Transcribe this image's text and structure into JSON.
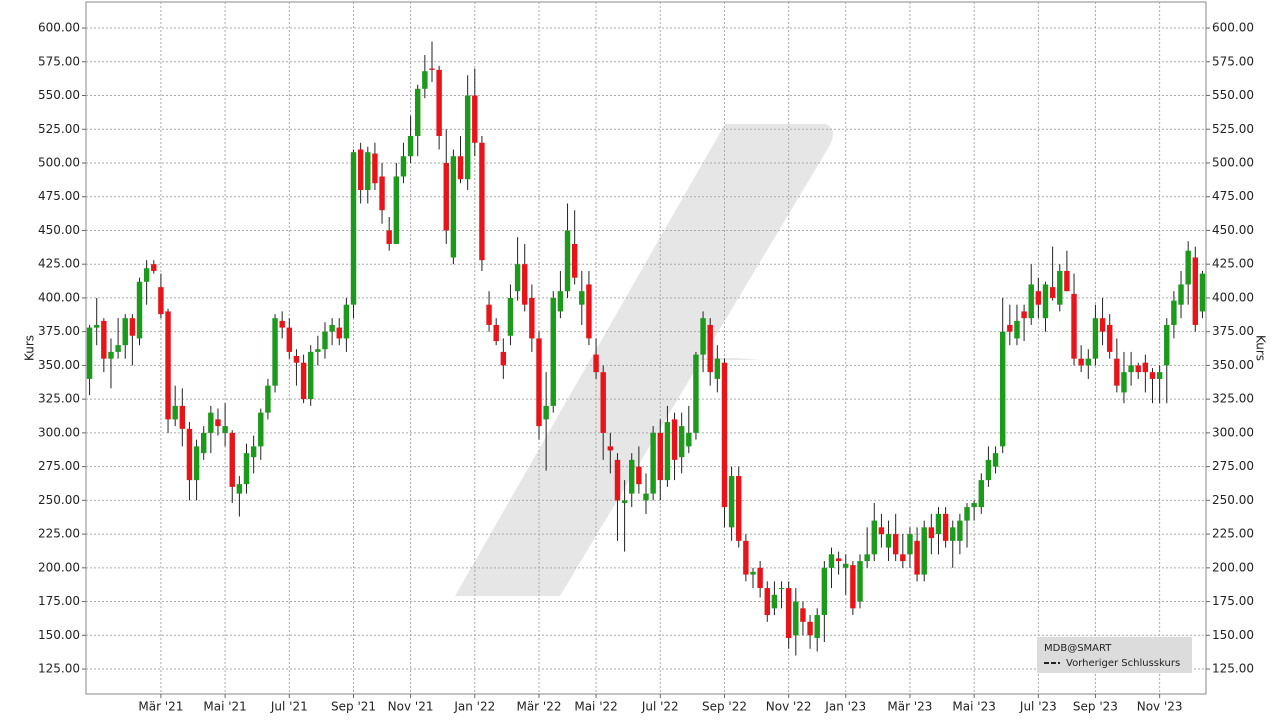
{
  "chart_data": {
    "type": "candlestick",
    "y_axis_label": "Kurs",
    "legend_title": "MDB@SMART",
    "legend_entry": "Vorheriger Schlusskurs",
    "up_color": "#1b9a1b",
    "down_color": "#e8141a",
    "grid": true,
    "ylim": [
      106.5,
      619.3
    ],
    "yticks": [
      {
        "value": 125,
        "label": "125.00"
      },
      {
        "value": 150,
        "label": "150.00"
      },
      {
        "value": 175,
        "label": "175.00"
      },
      {
        "value": 200,
        "label": "200.00"
      },
      {
        "value": 225,
        "label": "225.00"
      },
      {
        "value": 250,
        "label": "250.00"
      },
      {
        "value": 275,
        "label": "275.00"
      },
      {
        "value": 300,
        "label": "300.00"
      },
      {
        "value": 325,
        "label": "325.00"
      },
      {
        "value": 350,
        "label": "350.00"
      },
      {
        "value": 375,
        "label": "375.00"
      },
      {
        "value": 400,
        "label": "400.00"
      },
      {
        "value": 425,
        "label": "425.00"
      },
      {
        "value": 450,
        "label": "450.00"
      },
      {
        "value": 475,
        "label": "475.00"
      },
      {
        "value": 500,
        "label": "500.00"
      },
      {
        "value": 525,
        "label": "525.00"
      },
      {
        "value": 550,
        "label": "550.00"
      },
      {
        "value": 575,
        "label": "575.00"
      },
      {
        "value": 600,
        "label": "600.00"
      }
    ],
    "xlim": [
      -0.5,
      156.5
    ],
    "xticks": [
      {
        "value": 10,
        "label": "Mär '21"
      },
      {
        "value": 19,
        "label": "Mai '21"
      },
      {
        "value": 28,
        "label": "Jul '21"
      },
      {
        "value": 37,
        "label": "Sep '21"
      },
      {
        "value": 45,
        "label": "Nov '21"
      },
      {
        "value": 54,
        "label": "Jan '22"
      },
      {
        "value": 63,
        "label": "Mär '22"
      },
      {
        "value": 71,
        "label": "Mai '22"
      },
      {
        "value": 80,
        "label": "Jul '22"
      },
      {
        "value": 89,
        "label": "Sep '22"
      },
      {
        "value": 98,
        "label": "Nov '22"
      },
      {
        "value": 106,
        "label": "Jan '23"
      },
      {
        "value": 115,
        "label": "Mär '23"
      },
      {
        "value": 124,
        "label": "Mai '23"
      },
      {
        "value": 133,
        "label": "Jul '23"
      },
      {
        "value": 141,
        "label": "Sep '23"
      },
      {
        "value": 150,
        "label": "Nov '23"
      }
    ],
    "open": [
      340,
      378,
      383,
      355,
      360,
      365,
      385,
      370,
      412,
      425,
      408,
      390,
      310,
      320,
      303,
      265,
      285,
      300,
      310,
      300,
      300,
      255,
      262,
      282,
      290,
      315,
      335,
      383,
      378,
      357,
      352,
      325,
      360,
      362,
      375,
      378,
      370,
      395,
      510,
      480,
      507,
      490,
      450,
      440,
      490,
      505,
      520,
      555,
      570,
      569,
      500,
      430,
      505,
      488,
      550,
      515,
      395,
      380,
      360,
      372,
      405,
      425,
      400,
      370,
      310,
      320,
      390,
      405,
      440,
      395,
      410,
      358,
      345,
      290,
      280,
      248,
      255,
      275,
      250,
      255,
      300,
      265,
      310,
      282,
      290,
      300,
      358,
      380,
      340,
      352,
      230,
      268,
      220,
      195,
      200,
      185,
      170,
      185,
      185,
      150,
      170,
      160,
      148,
      165,
      200,
      207,
      200,
      202,
      175,
      205,
      210,
      230,
      215,
      225,
      210,
      210,
      220,
      195,
      230,
      225,
      240,
      220,
      220,
      235,
      245,
      245,
      265,
      275,
      290,
      380,
      370,
      390,
      385,
      405,
      385,
      408,
      395,
      420,
      403,
      355,
      350,
      355,
      385,
      380,
      355,
      330,
      345,
      350,
      352,
      345,
      340,
      350,
      380,
      395,
      410,
      430,
      390
    ],
    "high": [
      380,
      400,
      385,
      370,
      385,
      388,
      388,
      415,
      428,
      428,
      418,
      392,
      335,
      333,
      308,
      295,
      305,
      320,
      318,
      322,
      302,
      268,
      292,
      298,
      318,
      340,
      388,
      390,
      385,
      362,
      358,
      365,
      372,
      382,
      385,
      385,
      400,
      510,
      515,
      512,
      515,
      500,
      460,
      500,
      515,
      535,
      558,
      580,
      590,
      572,
      525,
      510,
      520,
      565,
      570,
      520,
      405,
      385,
      370,
      410,
      445,
      440,
      410,
      375,
      345,
      405,
      420,
      470,
      465,
      420,
      420,
      370,
      350,
      300,
      285,
      265,
      285,
      290,
      270,
      305,
      310,
      320,
      315,
      315,
      320,
      360,
      390,
      385,
      365,
      355,
      275,
      275,
      225,
      200,
      205,
      190,
      190,
      190,
      190,
      185,
      175,
      165,
      170,
      205,
      215,
      212,
      210,
      205,
      210,
      230,
      248,
      240,
      235,
      240,
      225,
      230,
      230,
      235,
      240,
      245,
      245,
      235,
      240,
      248,
      250,
      270,
      290,
      290,
      400,
      395,
      395,
      395,
      425,
      415,
      412,
      438,
      425,
      435,
      418,
      365,
      362,
      395,
      400,
      388,
      370,
      360,
      360,
      352,
      358,
      348,
      350,
      385,
      405,
      420,
      442,
      438,
      420
    ],
    "low": [
      328,
      365,
      345,
      333,
      355,
      355,
      350,
      365,
      395,
      418,
      385,
      300,
      305,
      290,
      250,
      250,
      280,
      285,
      298,
      290,
      248,
      238,
      255,
      270,
      280,
      310,
      330,
      370,
      355,
      335,
      322,
      320,
      350,
      355,
      365,
      365,
      360,
      385,
      470,
      470,
      480,
      455,
      435,
      440,
      485,
      500,
      505,
      548,
      560,
      510,
      440,
      425,
      485,
      480,
      505,
      420,
      375,
      365,
      340,
      365,
      398,
      390,
      360,
      295,
      272,
      315,
      385,
      400,
      410,
      380,
      365,
      340,
      280,
      270,
      220,
      212,
      245,
      255,
      240,
      250,
      250,
      260,
      265,
      270,
      285,
      295,
      345,
      335,
      330,
      230,
      220,
      215,
      190,
      185,
      178,
      160,
      165,
      170,
      140,
      135,
      150,
      140,
      138,
      145,
      185,
      195,
      180,
      165,
      170,
      200,
      205,
      215,
      205,
      205,
      200,
      200,
      190,
      190,
      210,
      210,
      215,
      200,
      210,
      215,
      235,
      240,
      260,
      270,
      285,
      365,
      365,
      368,
      380,
      385,
      375,
      398,
      390,
      405,
      350,
      345,
      340,
      350,
      365,
      355,
      330,
      322,
      335,
      340,
      330,
      322,
      322,
      322,
      370,
      385,
      395,
      375,
      385
    ],
    "close": [
      378,
      380,
      355,
      360,
      365,
      385,
      372,
      412,
      422,
      420,
      388,
      310,
      320,
      303,
      265,
      290,
      300,
      315,
      305,
      305,
      260,
      262,
      285,
      290,
      315,
      335,
      385,
      378,
      360,
      352,
      325,
      360,
      362,
      375,
      380,
      370,
      395,
      508,
      480,
      508,
      485,
      465,
      440,
      490,
      505,
      520,
      555,
      568,
      569,
      520,
      450,
      505,
      488,
      550,
      515,
      428,
      380,
      368,
      350,
      400,
      425,
      395,
      370,
      305,
      320,
      400,
      405,
      450,
      415,
      405,
      370,
      345,
      300,
      287,
      250,
      250,
      280,
      262,
      255,
      300,
      265,
      308,
      280,
      305,
      300,
      358,
      385,
      345,
      355,
      245,
      268,
      220,
      195,
      197,
      185,
      165,
      180,
      185,
      148,
      175,
      160,
      150,
      165,
      200,
      210,
      205,
      203,
      170,
      205,
      210,
      235,
      225,
      225,
      210,
      205,
      225,
      195,
      230,
      222,
      240,
      220,
      230,
      235,
      245,
      248,
      265,
      280,
      285,
      375,
      375,
      383,
      385,
      410,
      395,
      410,
      400,
      420,
      405,
      355,
      350,
      355,
      385,
      375,
      360,
      335,
      345,
      350,
      345,
      345,
      340,
      345,
      380,
      398,
      410,
      435,
      380,
      418
    ]
  }
}
